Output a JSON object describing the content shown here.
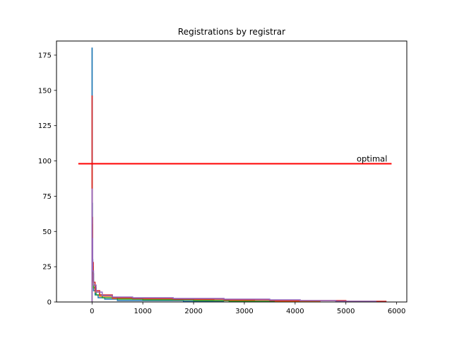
{
  "chart_data": {
    "type": "line",
    "title": "Registrations by registrar",
    "xlabel": "",
    "ylabel": "",
    "xlim": [
      -700,
      6200
    ],
    "ylim": [
      0,
      185
    ],
    "xticks": [
      0,
      1000,
      2000,
      3000,
      4000,
      5000,
      6000
    ],
    "yticks": [
      0,
      25,
      50,
      75,
      100,
      125,
      150,
      175
    ],
    "xtick_labels": [
      "0",
      "1000",
      "2000",
      "3000",
      "4000",
      "5000",
      "6000"
    ],
    "ytick_labels": [
      "0",
      "25",
      "50",
      "75",
      "100",
      "125",
      "150",
      "175"
    ],
    "grid": false,
    "legend": "none",
    "series": [
      {
        "color": "#1f77b4",
        "points": [
          [
            0,
            180
          ],
          [
            3,
            70
          ],
          [
            8,
            30
          ],
          [
            15,
            15
          ],
          [
            30,
            8
          ],
          [
            60,
            5
          ],
          [
            120,
            3
          ],
          [
            250,
            2
          ],
          [
            500,
            1
          ],
          [
            1000,
            1
          ],
          [
            1800,
            0.5
          ],
          [
            2600,
            0.5
          ]
        ]
      },
      {
        "color": "#ff7f0e",
        "points": [
          [
            0,
            95
          ],
          [
            3,
            55
          ],
          [
            10,
            25
          ],
          [
            25,
            12
          ],
          [
            60,
            7
          ],
          [
            150,
            4
          ],
          [
            400,
            2.5
          ],
          [
            800,
            2
          ],
          [
            1600,
            1.5
          ],
          [
            2400,
            1
          ],
          [
            3200,
            0.5
          ],
          [
            4500,
            0.5
          ]
        ]
      },
      {
        "color": "#2ca02c",
        "points": [
          [
            0,
            70
          ],
          [
            4,
            40
          ],
          [
            12,
            20
          ],
          [
            30,
            10
          ],
          [
            80,
            5
          ],
          [
            200,
            3
          ],
          [
            500,
            2
          ],
          [
            1000,
            1.5
          ],
          [
            2000,
            1
          ],
          [
            2700,
            0.5
          ],
          [
            3600,
            0.5
          ]
        ]
      },
      {
        "color": "#d62728",
        "points": [
          [
            0,
            146
          ],
          [
            3,
            60
          ],
          [
            10,
            28
          ],
          [
            25,
            14
          ],
          [
            60,
            8
          ],
          [
            150,
            5
          ],
          [
            400,
            3
          ],
          [
            800,
            2.5
          ],
          [
            1600,
            2
          ],
          [
            2600,
            1.5
          ],
          [
            3500,
            1
          ],
          [
            5000,
            0.5
          ],
          [
            5800,
            0.5
          ]
        ]
      },
      {
        "color": "#9467bd",
        "points": [
          [
            0,
            80
          ],
          [
            4,
            45
          ],
          [
            12,
            22
          ],
          [
            30,
            12
          ],
          [
            80,
            7
          ],
          [
            200,
            4.5
          ],
          [
            400,
            3.5
          ],
          [
            800,
            3
          ],
          [
            1600,
            2.5
          ],
          [
            2600,
            2
          ],
          [
            3500,
            1.5
          ],
          [
            4100,
            1
          ],
          [
            4800,
            0.5
          ],
          [
            5600,
            0.5
          ]
        ]
      }
    ],
    "reference_lines": [
      {
        "label": "optimal",
        "color": "#ff0000",
        "x": [
          -270,
          5900
        ],
        "y": 98
      }
    ]
  }
}
